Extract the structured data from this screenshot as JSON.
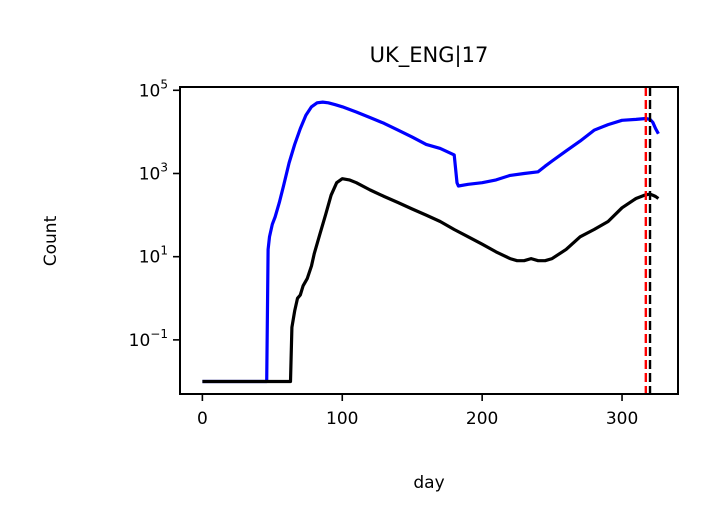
{
  "chart_data": {
    "type": "line",
    "title": "UK_ENG|17",
    "xlabel": "day",
    "ylabel": "Count",
    "yscale": "log",
    "xlim": [
      -16,
      340
    ],
    "ylim": [
      0.005,
      120000
    ],
    "grid": false,
    "x_ticks": [
      0,
      100,
      200,
      300
    ],
    "y_ticks": [
      {
        "value": 100000,
        "base": "10",
        "exp": "5"
      },
      {
        "value": 1000,
        "base": "10",
        "exp": "3"
      },
      {
        "value": 10,
        "base": "10",
        "exp": "1"
      },
      {
        "value": 0.1,
        "base": "10",
        "exp": "−1"
      }
    ],
    "series": [
      {
        "color": "#0000ff",
        "x": [
          0,
          46,
          47,
          48,
          50,
          52,
          55,
          58,
          62,
          66,
          70,
          74,
          78,
          82,
          86,
          90,
          95,
          100,
          110,
          120,
          130,
          140,
          150,
          160,
          170,
          180,
          182,
          183,
          190,
          200,
          210,
          220,
          230,
          240,
          245,
          250,
          260,
          270,
          280,
          290,
          300,
          310,
          317,
          320,
          322,
          324,
          326
        ],
        "y": [
          0.01,
          0.01,
          15,
          30,
          60,
          90,
          200,
          500,
          1800,
          5000,
          12000,
          25000,
          40000,
          50000,
          52000,
          50000,
          45000,
          40000,
          30000,
          22000,
          16000,
          11000,
          7500,
          5000,
          4000,
          2800,
          600,
          500,
          550,
          600,
          700,
          900,
          1000,
          1100,
          1500,
          2000,
          3500,
          6000,
          11000,
          15000,
          19000,
          20000,
          21000,
          20000,
          17000,
          12000,
          9000
        ]
      },
      {
        "color": "#000000",
        "x": [
          0,
          63,
          64,
          66,
          68,
          70,
          72,
          75,
          78,
          80,
          84,
          88,
          92,
          96,
          100,
          105,
          110,
          120,
          130,
          140,
          150,
          160,
          170,
          180,
          190,
          200,
          210,
          220,
          225,
          230,
          235,
          240,
          245,
          250,
          260,
          270,
          280,
          290,
          300,
          310,
          316,
          320,
          322,
          324,
          326
        ],
        "y": [
          0.01,
          0.01,
          0.2,
          0.5,
          1,
          1.2,
          2,
          3,
          6,
          12,
          35,
          100,
          300,
          600,
          750,
          700,
          600,
          400,
          280,
          200,
          140,
          100,
          70,
          45,
          30,
          20,
          13,
          9,
          8,
          8,
          9,
          8,
          8,
          9,
          15,
          30,
          45,
          70,
          150,
          250,
          300,
          320,
          300,
          280,
          250
        ]
      }
    ],
    "vlines": [
      {
        "x": 317,
        "color": "#ff0000",
        "style": "dashed"
      },
      {
        "x": 320,
        "color": "#000000",
        "style": "dashed"
      }
    ]
  }
}
